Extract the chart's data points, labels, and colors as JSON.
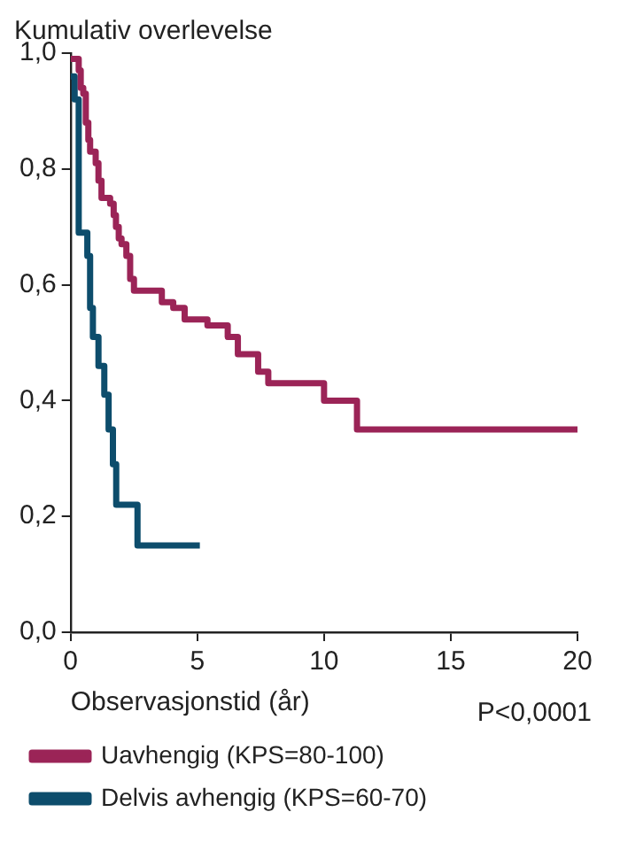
{
  "chart_data": {
    "type": "step",
    "ylabel": "Kumulativ overlevelse",
    "xlabel": "Observasjonstid (år)",
    "annotations": [
      "P<0,0001"
    ],
    "xlim": [
      0,
      20
    ],
    "xticks": [
      0,
      5,
      10,
      15,
      20
    ],
    "ylim": [
      0,
      1
    ],
    "yticks": [
      {
        "value": 0,
        "label": "0,0"
      },
      {
        "value": 0.2,
        "label": "0,2"
      },
      {
        "value": 0.4,
        "label": "0,4"
      },
      {
        "value": 0.6,
        "label": "0,6"
      },
      {
        "value": 0.8,
        "label": "0,8"
      },
      {
        "value": 1,
        "label": "1,0"
      }
    ],
    "grid": false,
    "legend": "bottom",
    "marker": "none",
    "line_style": "solid",
    "series": [
      {
        "name": "Uavhengig (KPS=80-100)",
        "color": "#9b2457",
        "x": [
          0,
          0.32,
          0.4,
          0.5,
          0.6,
          0.7,
          0.77,
          0.99,
          1.1,
          1.22,
          1.56,
          1.7,
          1.79,
          1.9,
          2.01,
          2.2,
          2.35,
          2.5,
          3.6,
          4.05,
          4.5,
          5.4,
          6.2,
          6.6,
          7.4,
          7.8,
          10,
          11.3,
          20
        ],
        "values": [
          0.99,
          0.97,
          0.94,
          0.93,
          0.88,
          0.85,
          0.83,
          0.81,
          0.78,
          0.75,
          0.74,
          0.72,
          0.7,
          0.68,
          0.67,
          0.65,
          0.61,
          0.59,
          0.57,
          0.56,
          0.54,
          0.53,
          0.51,
          0.48,
          0.45,
          0.43,
          0.4,
          0.35,
          0.35
        ]
      },
      {
        "name": "Delvis avhengig (KPS=60-70)",
        "color": "#0d4d6c",
        "x": [
          0,
          0.16,
          0.32,
          0.66,
          0.77,
          0.88,
          1.1,
          1.33,
          1.5,
          1.67,
          1.8,
          2.64,
          5.1
        ],
        "values": [
          0.96,
          0.92,
          0.69,
          0.65,
          0.56,
          0.51,
          0.46,
          0.41,
          0.35,
          0.29,
          0.22,
          0.15,
          0.15
        ]
      }
    ]
  }
}
